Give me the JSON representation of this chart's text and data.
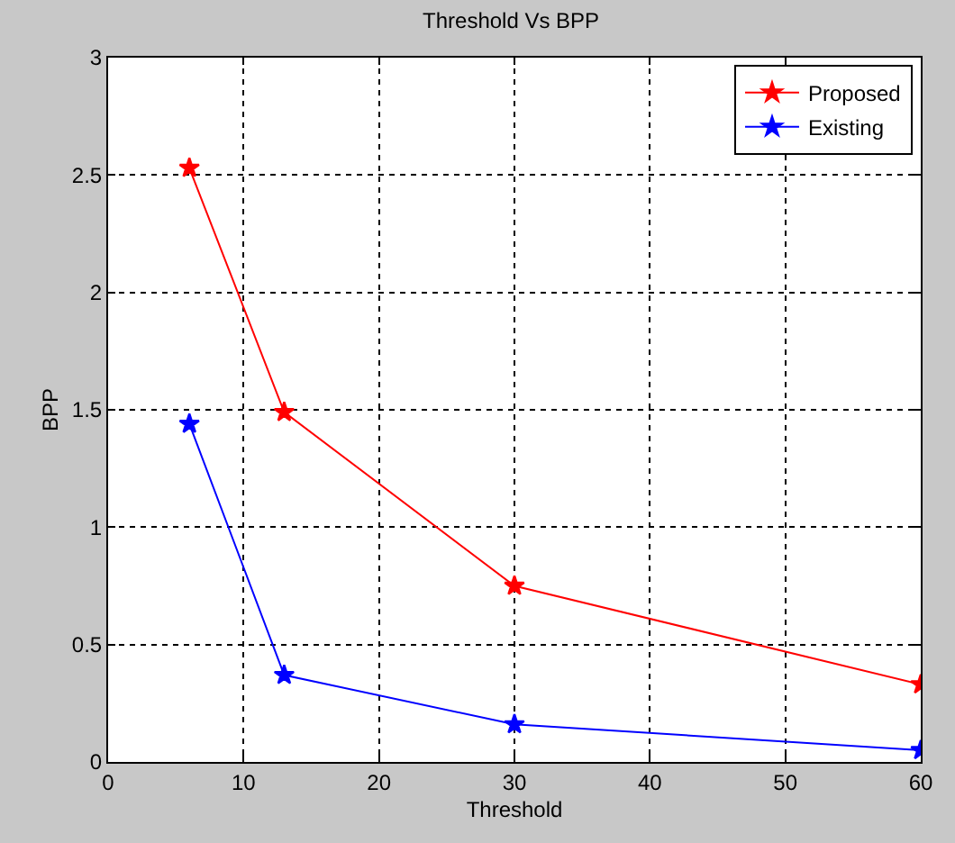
{
  "chart_data": {
    "type": "line",
    "title": "Threshold Vs BPP",
    "xlabel": "Threshold",
    "ylabel": "BPP",
    "x": [
      6,
      13,
      30,
      60
    ],
    "series": [
      {
        "name": "Proposed",
        "color": "#ff0000",
        "values": [
          2.53,
          1.49,
          0.75,
          0.33
        ]
      },
      {
        "name": "Existing",
        "color": "#0000ff",
        "values": [
          1.44,
          0.37,
          0.16,
          0.05
        ]
      }
    ],
    "xlim": [
      0,
      60
    ],
    "xticks": [
      0,
      10,
      20,
      30,
      40,
      50,
      60
    ],
    "ylim": [
      0,
      3
    ],
    "yticks": [
      0,
      0.5,
      1,
      1.5,
      2,
      2.5,
      3
    ],
    "grid": true,
    "legend": "top right",
    "marker": "star",
    "line_style": "solid"
  }
}
